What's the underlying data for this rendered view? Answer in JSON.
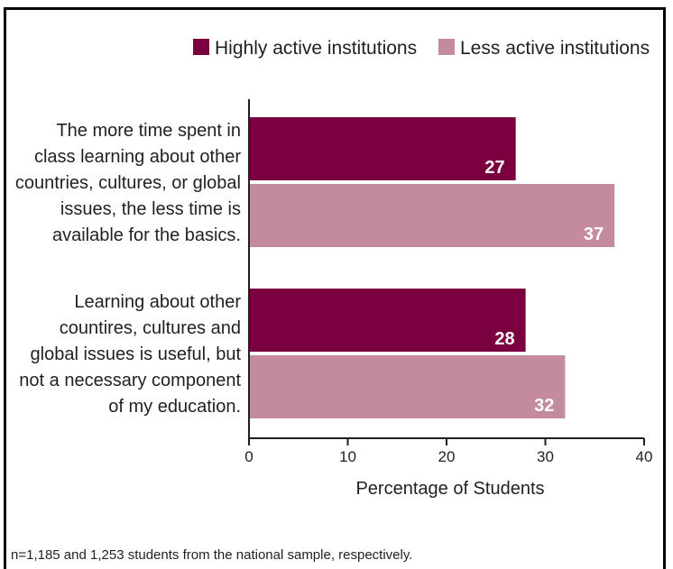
{
  "chart_data": {
    "type": "bar",
    "orientation": "horizontal",
    "categories": [
      [
        "The more time spent in",
        "class learning about other",
        "countries, cultures, or global",
        "issues, the less time is",
        "available for the basics."
      ],
      [
        "Learning about other",
        "countires, cultures and",
        "global issues is useful, but",
        "not a necessary component",
        "of my education."
      ]
    ],
    "series": [
      {
        "name": "Highly active institutions",
        "color": "#7a0040",
        "values": [
          27,
          28
        ]
      },
      {
        "name": "Less active institutions",
        "color": "#c48a9e",
        "values": [
          37,
          32
        ]
      }
    ],
    "xlabel": "Percentage of Students",
    "xlim": [
      0,
      40
    ],
    "xticks": [
      0,
      10,
      20,
      30,
      40
    ],
    "legend": "top-right",
    "grid": false
  },
  "footnote": "n=1,185 and 1,253 students from the national sample, respectively."
}
